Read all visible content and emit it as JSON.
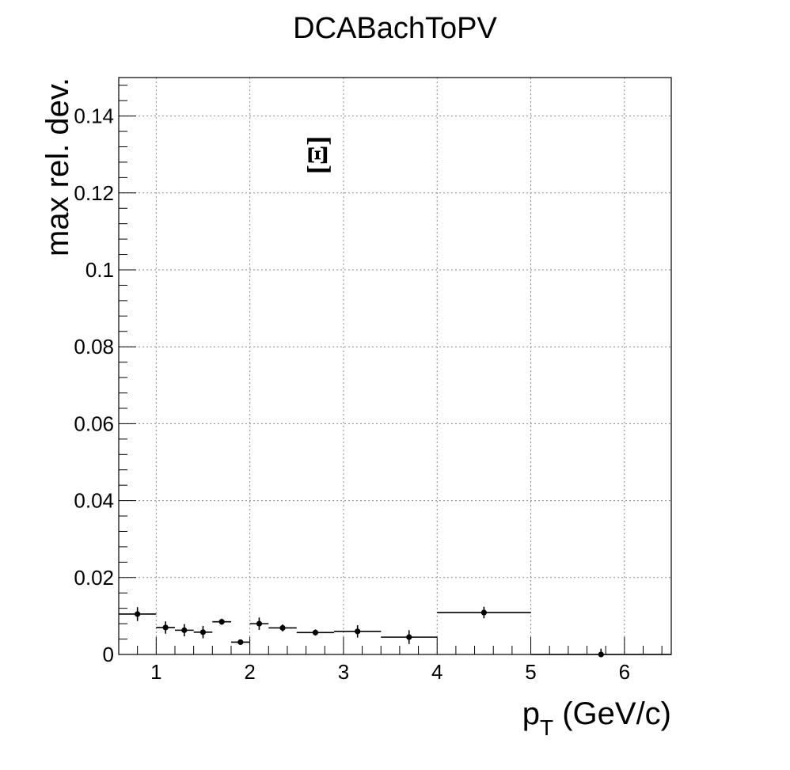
{
  "chart_data": {
    "type": "scatter",
    "title": "DCABachToPV",
    "xlabel": "p",
    "xlabel_sub": "T",
    "xlabel_unit": " (GeV/c)",
    "ylabel": "max rel. dev.",
    "annotation": "[Ξ]",
    "xlim": [
      0.6,
      6.5
    ],
    "ylim": [
      0,
      0.15
    ],
    "grid": true,
    "x_ticks": [
      1,
      2,
      3,
      4,
      5,
      6
    ],
    "x_tick_labels": [
      "1",
      "2",
      "3",
      "4",
      "5",
      "6"
    ],
    "y_ticks": [
      0,
      0.02,
      0.04,
      0.06,
      0.08,
      0.1,
      0.12,
      0.14
    ],
    "y_tick_labels": [
      "0",
      "0.02",
      "0.04",
      "0.06",
      "0.08",
      "0.1",
      "0.12",
      "0.14"
    ],
    "series": [
      {
        "points": [
          {
            "x": 0.8,
            "xlow": 0.6,
            "xhigh": 1.0,
            "y": 0.0105,
            "err": 0.0018
          },
          {
            "x": 1.1,
            "xlow": 1.0,
            "xhigh": 1.2,
            "y": 0.007,
            "err": 0.0016
          },
          {
            "x": 1.3,
            "xlow": 1.2,
            "xhigh": 1.4,
            "y": 0.0063,
            "err": 0.0016
          },
          {
            "x": 1.5,
            "xlow": 1.4,
            "xhigh": 1.6,
            "y": 0.0058,
            "err": 0.0016
          },
          {
            "x": 1.7,
            "xlow": 1.6,
            "xhigh": 1.8,
            "y": 0.0085,
            "err": 0.0008
          },
          {
            "x": 1.9,
            "xlow": 1.8,
            "xhigh": 2.0,
            "y": 0.0032,
            "err": 0.0006
          },
          {
            "x": 2.1,
            "xlow": 2.0,
            "xhigh": 2.2,
            "y": 0.008,
            "err": 0.0016
          },
          {
            "x": 2.35,
            "xlow": 2.2,
            "xhigh": 2.5,
            "y": 0.0069,
            "err": 0.0009
          },
          {
            "x": 2.7,
            "xlow": 2.5,
            "xhigh": 2.9,
            "y": 0.0057,
            "err": 0.0008
          },
          {
            "x": 3.15,
            "xlow": 2.9,
            "xhigh": 3.4,
            "y": 0.006,
            "err": 0.0016
          },
          {
            "x": 3.7,
            "xlow": 3.4,
            "xhigh": 4.0,
            "y": 0.0045,
            "err": 0.0018
          },
          {
            "x": 4.5,
            "xlow": 4.0,
            "xhigh": 5.0,
            "y": 0.0109,
            "err": 0.0015
          },
          {
            "x": 5.75,
            "xlow": 5.0,
            "xhigh": 6.5,
            "y": 0.0,
            "err": 0.0015
          }
        ]
      }
    ]
  }
}
